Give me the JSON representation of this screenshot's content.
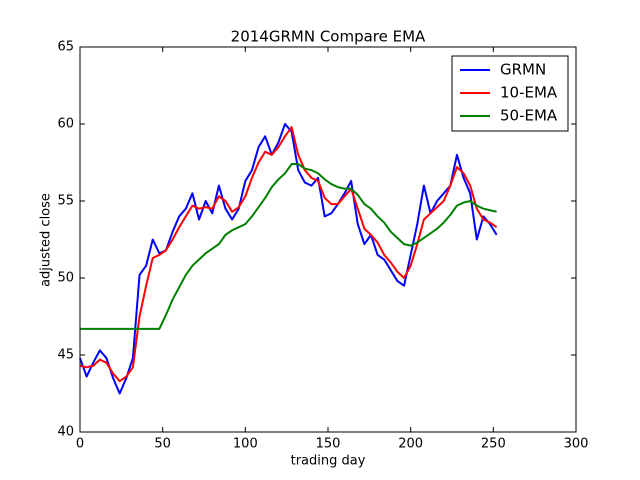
{
  "chart_data": {
    "type": "line",
    "title": "2014GRMN Compare EMA",
    "x_label": "trading day",
    "y_label": "adjusted close",
    "x": [
      0,
      4,
      8,
      12,
      16,
      20,
      24,
      28,
      32,
      36,
      40,
      44,
      48,
      52,
      56,
      60,
      64,
      68,
      72,
      76,
      80,
      84,
      88,
      92,
      96,
      100,
      104,
      108,
      112,
      116,
      120,
      124,
      128,
      132,
      136,
      140,
      144,
      148,
      152,
      156,
      160,
      164,
      168,
      172,
      176,
      180,
      184,
      188,
      192,
      196,
      200,
      204,
      208,
      212,
      216,
      220,
      224,
      228,
      232,
      236,
      240,
      244,
      248,
      252
    ],
    "series": [
      {
        "name": "GRMN",
        "color": "#0000ff",
        "values": [
          44.8,
          43.6,
          44.5,
          45.3,
          44.8,
          43.5,
          42.5,
          43.5,
          44.8,
          50.2,
          50.8,
          52.5,
          51.6,
          51.8,
          53.0,
          54.0,
          54.5,
          55.5,
          53.8,
          55.0,
          54.2,
          56.0,
          54.5,
          53.8,
          54.5,
          56.3,
          57.0,
          58.5,
          59.2,
          58.0,
          58.8,
          60.0,
          59.5,
          57.0,
          56.2,
          56.0,
          56.5,
          54.0,
          54.2,
          54.8,
          55.5,
          56.3,
          53.5,
          52.2,
          52.8,
          51.5,
          51.2,
          50.5,
          49.8,
          49.5,
          51.5,
          53.5,
          56.0,
          54.2,
          55.0,
          55.5,
          56.0,
          58.0,
          56.5,
          55.5,
          52.5,
          54.0,
          53.5,
          52.8
        ]
      },
      {
        "name": "10-EMA",
        "color": "#ff0000",
        "values": [
          44.3,
          44.2,
          44.3,
          44.7,
          44.5,
          43.8,
          43.3,
          43.6,
          44.2,
          47.5,
          49.5,
          51.3,
          51.5,
          51.8,
          52.5,
          53.3,
          54.0,
          54.7,
          54.5,
          54.6,
          54.5,
          55.3,
          55.0,
          54.3,
          54.6,
          55.3,
          56.5,
          57.5,
          58.2,
          58.0,
          58.5,
          59.2,
          59.8,
          58.0,
          57.0,
          56.5,
          56.3,
          55.2,
          54.8,
          54.8,
          55.3,
          55.8,
          54.5,
          53.2,
          52.8,
          52.3,
          51.5,
          51.0,
          50.4,
          50.0,
          50.8,
          52.2,
          53.8,
          54.2,
          54.6,
          55.0,
          56.0,
          57.2,
          56.8,
          56.0,
          54.5,
          53.8,
          53.6,
          53.3
        ]
      },
      {
        "name": "50-EMA",
        "color": "#008000",
        "values": [
          46.7,
          46.7,
          46.7,
          46.7,
          46.7,
          46.7,
          46.7,
          46.7,
          46.7,
          46.7,
          46.7,
          46.7,
          46.7,
          47.6,
          48.6,
          49.4,
          50.2,
          50.8,
          51.2,
          51.6,
          51.9,
          52.2,
          52.8,
          53.1,
          53.3,
          53.5,
          54.0,
          54.6,
          55.2,
          55.9,
          56.4,
          56.8,
          57.4,
          57.4,
          57.1,
          57.0,
          56.8,
          56.4,
          56.1,
          55.9,
          55.8,
          55.8,
          55.4,
          54.8,
          54.5,
          54.0,
          53.6,
          53.0,
          52.6,
          52.2,
          52.1,
          52.3,
          52.6,
          52.9,
          53.2,
          53.6,
          54.1,
          54.7,
          54.9,
          55.0,
          54.7,
          54.5,
          54.4,
          54.3
        ]
      }
    ],
    "xlim": [
      0,
      300
    ],
    "xticks": [
      0,
      50,
      100,
      150,
      200,
      250,
      300
    ],
    "ylim": [
      40,
      65
    ],
    "yticks": [
      40,
      45,
      50,
      55,
      60,
      65
    ],
    "legend": "upper right"
  }
}
